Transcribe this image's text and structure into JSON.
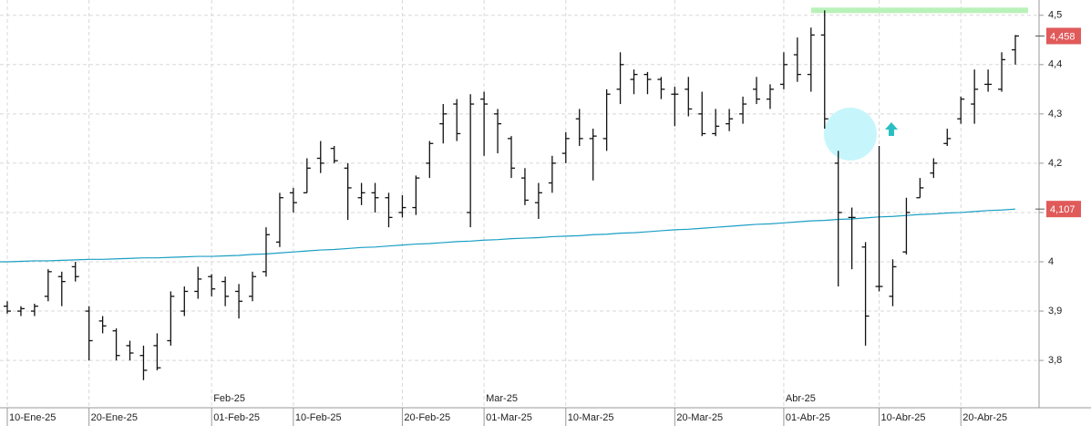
{
  "chart_data": {
    "type": "ohlc",
    "categories": [
      "10-Ene-25",
      null,
      null,
      null,
      null,
      null,
      "20-Ene-25",
      null,
      null,
      null,
      null,
      null,
      null,
      null,
      null,
      "01-Feb-25",
      null,
      null,
      null,
      null,
      null,
      "10-Feb-25",
      null,
      null,
      null,
      null,
      null,
      null,
      null,
      "20-Feb-25",
      null,
      null,
      null,
      null,
      null,
      "01-Mar-25",
      null,
      null,
      null,
      null,
      null,
      "10-Mar-25",
      null,
      null,
      null,
      null,
      null,
      null,
      null,
      "20-Mar-25",
      null,
      null,
      null,
      null,
      null,
      null,
      null,
      "01-Abr-25",
      null,
      null,
      null,
      null,
      null,
      null,
      "10-Abr-25",
      null,
      null,
      null,
      null,
      null,
      "20-Abr-25",
      null,
      null,
      null,
      null
    ],
    "month_labels": [
      "Feb-25",
      "Mar-25",
      "Abr-25"
    ],
    "open": [
      3.91,
      3.9,
      3.9,
      3.93,
      3.97,
      3.99,
      3.9,
      3.88,
      3.86,
      3.83,
      3.81,
      3.83,
      3.84,
      3.9,
      3.94,
      3.97,
      3.96,
      3.94,
      3.93,
      3.98,
      4.04,
      4.14,
      4.14,
      4.21,
      4.23,
      4.19,
      4.13,
      4.14,
      4.13,
      4.1,
      4.11,
      4.2,
      4.28,
      4.32,
      4.1,
      4.33,
      4.3,
      4.25,
      4.17,
      4.12,
      4.16,
      4.22,
      4.29,
      4.25,
      4.25,
      4.35,
      4.37,
      4.38,
      4.37,
      4.34,
      4.35,
      4.3,
      4.26,
      4.28,
      4.3,
      4.35,
      4.33,
      4.36,
      4.42,
      4.38,
      4.46,
      4.2,
      4.09,
      4.03,
      3.95,
      3.93,
      4.02,
      4.13,
      4.18,
      4.24,
      4.29,
      4.32,
      4.36,
      4.35,
      4.43
    ],
    "high": [
      3.92,
      3.91,
      3.915,
      3.985,
      3.98,
      4.0,
      3.91,
      3.89,
      3.865,
      3.84,
      3.83,
      3.855,
      3.94,
      3.95,
      3.99,
      3.975,
      3.97,
      3.955,
      3.98,
      4.07,
      4.14,
      4.15,
      4.21,
      4.245,
      4.235,
      4.2,
      4.16,
      4.16,
      4.14,
      4.135,
      4.175,
      4.245,
      4.32,
      4.33,
      4.34,
      4.345,
      4.31,
      4.255,
      4.19,
      4.16,
      4.215,
      4.263,
      4.31,
      4.27,
      4.35,
      4.425,
      4.39,
      4.385,
      4.375,
      4.355,
      4.375,
      4.345,
      4.31,
      4.31,
      4.335,
      4.375,
      4.36,
      4.425,
      4.455,
      4.475,
      4.51,
      4.225,
      4.11,
      4.04,
      4.235,
      4.005,
      4.13,
      4.17,
      4.21,
      4.27,
      4.335,
      4.39,
      4.39,
      4.425,
      4.46
    ],
    "low": [
      3.895,
      3.89,
      3.89,
      3.92,
      3.91,
      3.96,
      3.8,
      3.855,
      3.8,
      3.8,
      3.76,
      3.78,
      3.83,
      3.89,
      3.925,
      3.93,
      3.91,
      3.885,
      3.92,
      3.97,
      4.03,
      4.1,
      4.14,
      4.18,
      4.2,
      4.085,
      4.115,
      4.1,
      4.07,
      4.09,
      4.095,
      4.17,
      4.24,
      4.245,
      4.07,
      4.215,
      4.22,
      4.17,
      4.115,
      4.087,
      4.14,
      4.2,
      4.235,
      4.165,
      4.225,
      4.32,
      4.34,
      4.34,
      4.33,
      4.275,
      4.295,
      4.255,
      4.255,
      4.265,
      4.28,
      4.32,
      4.31,
      4.35,
      4.365,
      4.345,
      4.27,
      3.95,
      3.985,
      3.83,
      3.94,
      3.91,
      4.015,
      4.13,
      4.17,
      4.235,
      4.28,
      4.28,
      4.345,
      4.345,
      4.4
    ],
    "close": [
      3.9,
      3.905,
      3.91,
      3.98,
      3.96,
      3.97,
      3.84,
      3.87,
      3.81,
      3.815,
      3.78,
      3.785,
      3.93,
      3.94,
      3.965,
      3.945,
      3.93,
      3.92,
      3.97,
      4.055,
      4.13,
      4.12,
      4.19,
      4.2,
      4.205,
      4.15,
      4.14,
      4.13,
      4.09,
      4.11,
      4.17,
      4.24,
      4.3,
      4.26,
      4.32,
      4.32,
      4.28,
      4.19,
      4.125,
      4.14,
      4.2,
      4.25,
      4.25,
      4.255,
      4.34,
      4.4,
      4.38,
      4.37,
      4.35,
      4.34,
      4.31,
      4.26,
      4.275,
      4.29,
      4.32,
      4.33,
      4.35,
      4.4,
      4.38,
      4.46,
      4.29,
      4.1,
      4.09,
      3.89,
      3.95,
      3.99,
      4.1,
      4.15,
      4.2,
      4.25,
      4.33,
      4.35,
      4.36,
      4.41,
      4.458
    ],
    "bar_color": "#111111",
    "moving_average": {
      "color": "#1a9fc4",
      "values": [
        4.0,
        4.001,
        4.002,
        4.002,
        4.003,
        4.004,
        4.005,
        4.005,
        4.006,
        4.007,
        4.008,
        4.008,
        4.009,
        4.01,
        4.011,
        4.011,
        4.012,
        4.013,
        4.015,
        4.016,
        4.018,
        4.02,
        4.022,
        4.024,
        4.025,
        4.027,
        4.029,
        4.03,
        4.032,
        4.034,
        4.036,
        4.037,
        4.039,
        4.041,
        4.042,
        4.044,
        4.045,
        4.047,
        4.048,
        4.049,
        4.051,
        4.052,
        4.053,
        4.055,
        4.056,
        4.058,
        4.059,
        4.061,
        4.063,
        4.065,
        4.066,
        4.068,
        4.07,
        4.072,
        4.074,
        4.076,
        4.077,
        4.079,
        4.081,
        4.083,
        4.084,
        4.086,
        4.087,
        4.089,
        4.091,
        4.092,
        4.094,
        4.096,
        4.097,
        4.099,
        4.1,
        4.102,
        4.104,
        4.105,
        4.107
      ]
    },
    "last_price": {
      "value": 4.458,
      "label": "4,458"
    },
    "ma_last": {
      "value": 4.107,
      "label": "4,107"
    },
    "label_color": "#e05a5a",
    "resistance": {
      "value": 4.51,
      "color": "#b9f2b9"
    },
    "ylim": [
      3.704,
      4.531
    ],
    "yticks": [
      {
        "value": 3.8,
        "label": "3,8"
      },
      {
        "value": 3.9,
        "label": "3,9"
      },
      4,
      {
        "value": 4.1,
        "label": "4,1"
      },
      {
        "value": 4.2,
        "label": "4,2"
      },
      {
        "value": 4.3,
        "label": "4,3"
      },
      {
        "value": 4.4,
        "label": "4,4"
      },
      {
        "value": 4.5,
        "label": "4,5"
      }
    ],
    "grid": true
  }
}
